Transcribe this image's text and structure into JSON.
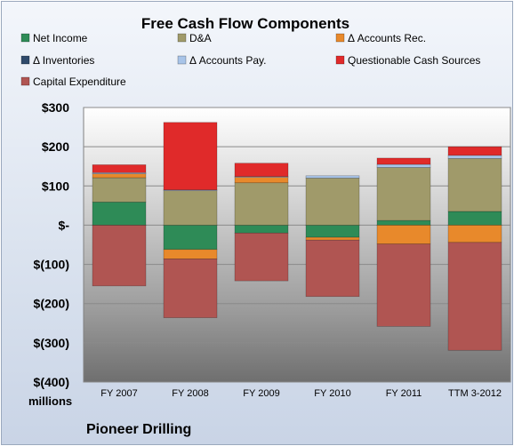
{
  "chart_data": {
    "type": "bar",
    "stacked": true,
    "title": "Free Cash Flow Components",
    "categories": [
      "FY 2007",
      "FY 2008",
      "FY 2009",
      "FY 2010",
      "FY 2011",
      "TTM 3-2012"
    ],
    "y_tick_labels": [
      "$300",
      "$200",
      "$100",
      "$-",
      "$(100)",
      "$(200)",
      "$(300)",
      "$(400)"
    ],
    "ylim": [
      -400,
      300
    ],
    "ylabel": "millions",
    "footer": "Pioneer Drilling",
    "legend_position": "top",
    "grid": true,
    "series": [
      {
        "name": "Net Income",
        "color": "#2e8b57",
        "values": [
          59,
          -62,
          -20,
          -31,
          12,
          35
        ]
      },
      {
        "name": "D&A",
        "color": "#a09a6a",
        "values": [
          62,
          88,
          108,
          120,
          135,
          135
        ]
      },
      {
        "name": "Δ Accounts Rec.",
        "color": "#e8892b",
        "values": [
          10,
          -24,
          14,
          -7,
          -48,
          -44
        ]
      },
      {
        "name": "Δ Inventories",
        "color": "#2f4a6b",
        "values": [
          0,
          0,
          0,
          0,
          0,
          0
        ]
      },
      {
        "name": "Δ Accounts Pay.",
        "color": "#a8c4e8",
        "values": [
          3,
          2,
          2,
          6,
          8,
          8
        ]
      },
      {
        "name": "Questionable Cash Sources",
        "color": "#e02a2a",
        "values": [
          20,
          172,
          34,
          0,
          16,
          22
        ]
      },
      {
        "name": "Capital Expenditure",
        "color": "#b05552",
        "values": [
          -155,
          -150,
          -122,
          -144,
          -210,
          -275
        ]
      }
    ]
  }
}
